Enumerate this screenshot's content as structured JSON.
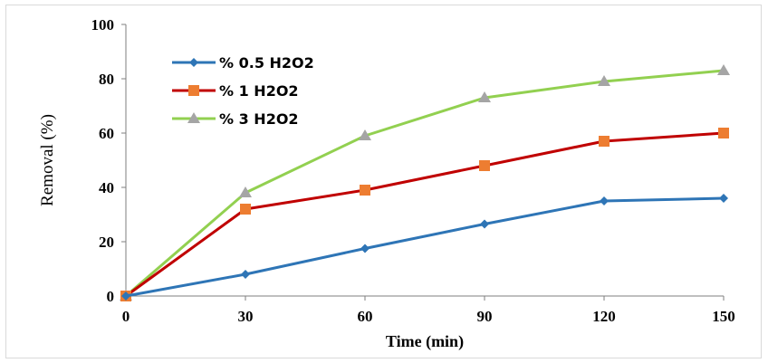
{
  "chart_data": {
    "type": "line",
    "title": "",
    "xlabel": "Time (min)",
    "ylabel": "Removal (%)",
    "x": [
      0,
      30,
      60,
      90,
      120,
      150
    ],
    "xlim": [
      0,
      150
    ],
    "ylim": [
      0,
      100
    ],
    "xticks": [
      "0",
      "30",
      "60",
      "90",
      "120",
      "150"
    ],
    "yticks": [
      "0",
      "20",
      "40",
      "60",
      "80",
      "100"
    ],
    "grid": false,
    "legend_position": "top-left",
    "series": [
      {
        "name": "% 0.5 H2O2",
        "color": "#2e75b6",
        "marker": "diamond",
        "values": [
          0,
          8,
          17.5,
          26.5,
          35,
          36
        ]
      },
      {
        "name": "% 1 H2O2",
        "color": "#c00000",
        "marker": "square",
        "marker_color": "#ed7d31",
        "values": [
          0,
          32,
          39,
          48,
          57,
          60
        ]
      },
      {
        "name": "% 3 H2O2",
        "color": "#92d050",
        "marker": "triangle",
        "marker_color": "#a5a5a5",
        "values": [
          0,
          38,
          59,
          73,
          79,
          83
        ]
      }
    ]
  }
}
